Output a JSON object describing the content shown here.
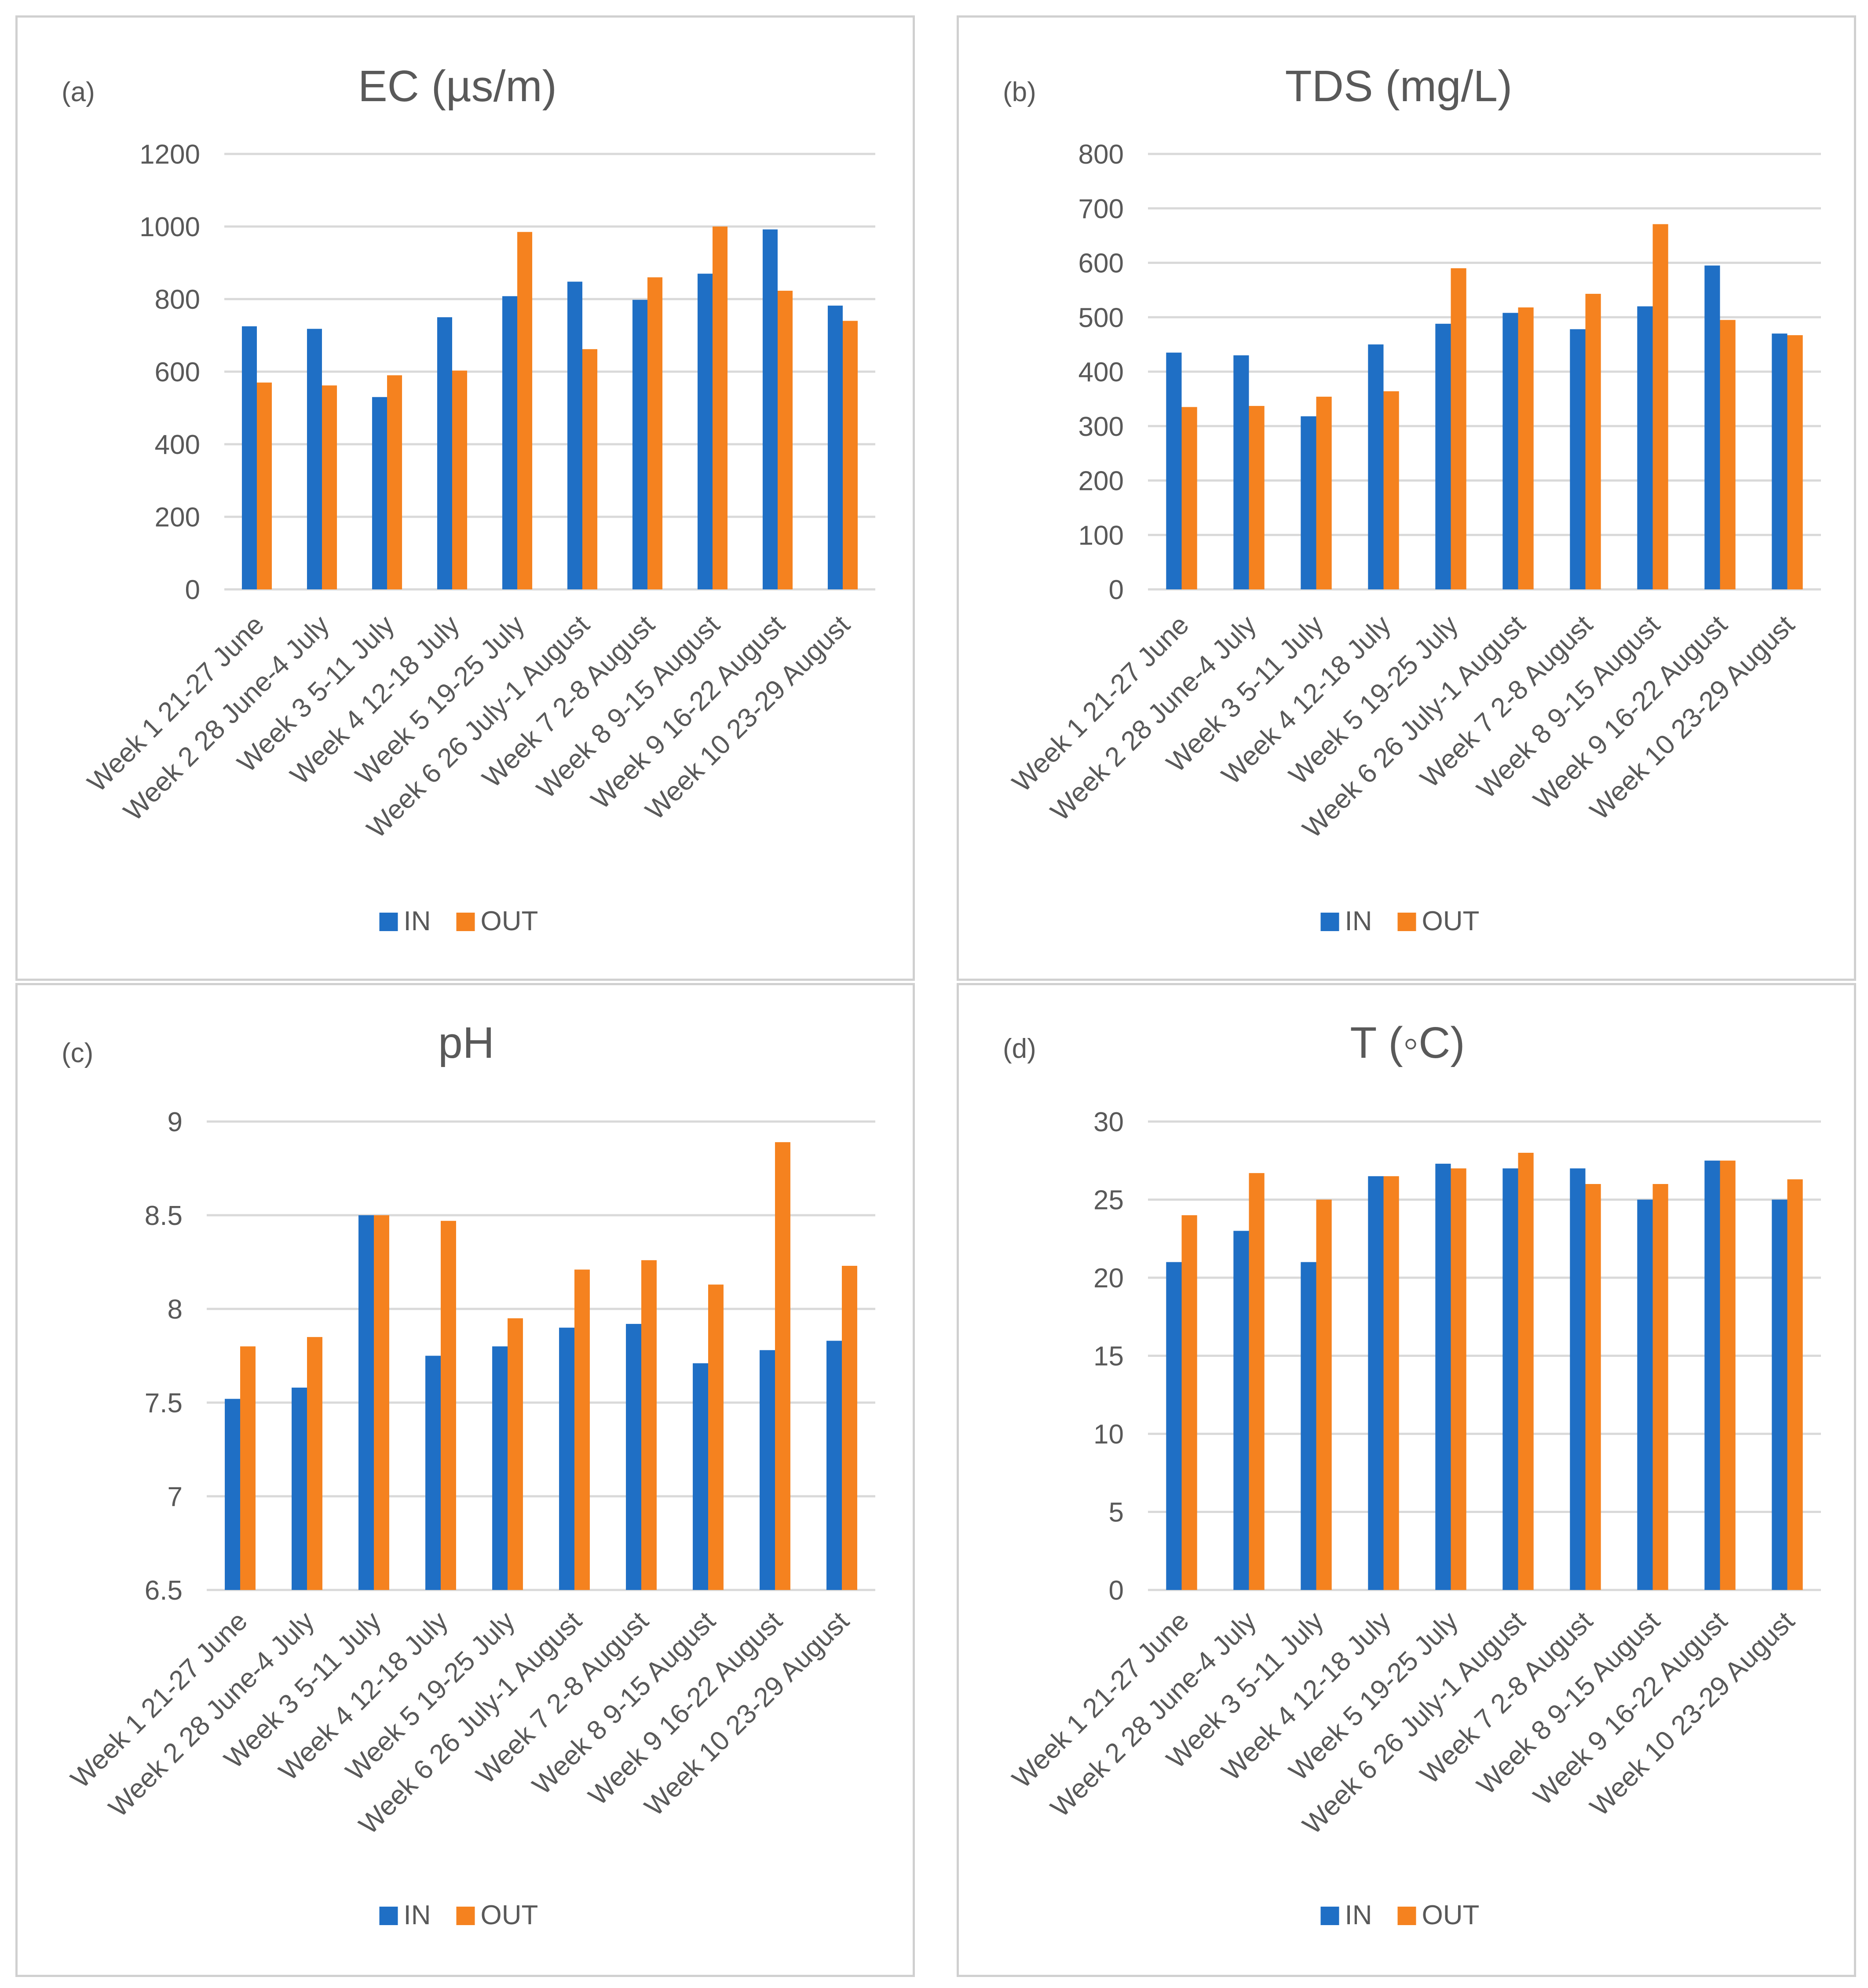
{
  "colors": {
    "in": "#1f6fc5",
    "out": "#f5821f",
    "grid": "#d9d9d9",
    "axis_text": "#595959",
    "title_text": "#595959"
  },
  "legend": {
    "in_label": "IN",
    "out_label": "OUT"
  },
  "categories": [
    "Week 1 21-27 June",
    "Week 2 28 June-4 July",
    "Week 3 5-11 July",
    "Week 4 12-18 July",
    "Week 5 19-25 July",
    "Week 6 26 July-1 August",
    "Week 7 2-8 August",
    "Week 8 9-15 August",
    "Week 9 16-22 August",
    "Week 10 23-29 August"
  ],
  "chart_data": [
    {
      "panel_label": "(a)",
      "type": "bar",
      "title": "EC (µs/m)",
      "ylim": [
        0,
        1200
      ],
      "yticks": [
        "0",
        "200",
        "400",
        "600",
        "800",
        "1000",
        "1200"
      ],
      "grid": true,
      "legend_position": "bottom",
      "series": [
        {
          "name": "IN",
          "values": [
            725,
            718,
            530,
            750,
            808,
            848,
            798,
            870,
            992,
            782
          ]
        },
        {
          "name": "OUT",
          "values": [
            570,
            562,
            590,
            603,
            985,
            662,
            860,
            1000,
            823,
            740
          ]
        }
      ]
    },
    {
      "panel_label": "(b)",
      "type": "bar",
      "title": "TDS (mg/L)",
      "ylim": [
        0,
        800
      ],
      "yticks": [
        "0",
        "100",
        "200",
        "300",
        "400",
        "500",
        "600",
        "700",
        "800"
      ],
      "grid": true,
      "legend_position": "bottom",
      "series": [
        {
          "name": "IN",
          "values": [
            435,
            430,
            318,
            450,
            488,
            508,
            478,
            520,
            595,
            470
          ]
        },
        {
          "name": "OUT",
          "values": [
            335,
            337,
            354,
            364,
            590,
            518,
            543,
            671,
            495,
            467
          ]
        }
      ]
    },
    {
      "panel_label": "(c)",
      "type": "bar",
      "title": "pH",
      "ylim": [
        6.5,
        9
      ],
      "yticks": [
        "6.5",
        "7",
        "7.5",
        "8",
        "8.5",
        "9"
      ],
      "grid": true,
      "legend_position": "bottom",
      "series": [
        {
          "name": "IN",
          "values": [
            7.52,
            7.58,
            8.5,
            7.75,
            7.8,
            7.9,
            7.92,
            7.71,
            7.78,
            7.83
          ]
        },
        {
          "name": "OUT",
          "values": [
            7.8,
            7.85,
            8.5,
            8.47,
            7.95,
            8.21,
            8.26,
            8.13,
            8.89,
            8.23
          ]
        }
      ]
    },
    {
      "panel_label": "(d)",
      "type": "bar",
      "title": "T (◦C)",
      "ylim": [
        0,
        30
      ],
      "yticks": [
        "0",
        "5",
        "10",
        "15",
        "20",
        "25",
        "30"
      ],
      "grid": true,
      "legend_position": "bottom",
      "series": [
        {
          "name": "IN",
          "values": [
            21,
            23,
            21,
            26.5,
            27.3,
            27,
            27,
            25,
            27.5,
            25
          ]
        },
        {
          "name": "OUT",
          "values": [
            24,
            26.7,
            25,
            26.5,
            27,
            28,
            26,
            26,
            27.5,
            26.3
          ]
        }
      ]
    }
  ]
}
